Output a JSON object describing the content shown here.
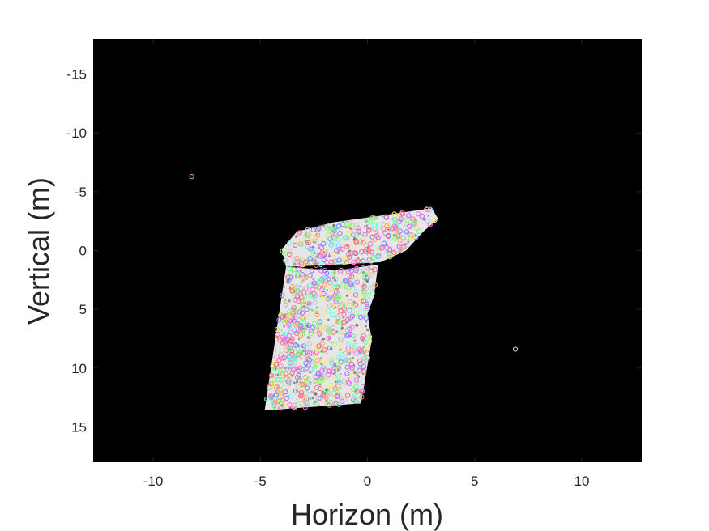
{
  "chart_data": {
    "type": "scatter",
    "title": "",
    "xlabel": "Horizon (m)",
    "ylabel": "Vertical (m)",
    "xlim": [
      -12.8,
      12.8
    ],
    "ylim": [
      -18,
      18
    ],
    "y_reversed": true,
    "background": "#000000",
    "grid": false,
    "legend": "none",
    "xticks": [
      -10,
      -5,
      0,
      5,
      10
    ],
    "yticks": [
      -15,
      -10,
      -5,
      0,
      5,
      10,
      15
    ],
    "xtick_labels": [
      "-10",
      "-5",
      "0",
      "5",
      "10"
    ],
    "ytick_labels": [
      "-15",
      "-10",
      "-5",
      "0",
      "5",
      "10",
      "15"
    ],
    "point_cloud": {
      "color": "#ffffff",
      "regions": [
        {
          "polygon": [
            [
              -4.8,
              13.6
            ],
            [
              -3.8,
              1.4
            ],
            [
              -1.5,
              1.7
            ],
            [
              0.5,
              1.2
            ],
            [
              0.3,
              3.9
            ],
            [
              0.0,
              5.4
            ],
            [
              0.2,
              7.6
            ],
            [
              -0.3,
              13.0
            ],
            [
              -2.6,
              13.3
            ]
          ]
        },
        {
          "polygon": [
            [
              -4.0,
              -0.1
            ],
            [
              -3.3,
              -1.6
            ],
            [
              -1.6,
              -2.4
            ],
            [
              0.0,
              -2.8
            ],
            [
              1.5,
              -3.2
            ],
            [
              3.0,
              -3.6
            ],
            [
              3.3,
              -2.7
            ],
            [
              2.6,
              -1.6
            ],
            [
              1.8,
              0.0
            ],
            [
              0.6,
              1.0
            ],
            [
              -1.5,
              1.2
            ],
            [
              -3.8,
              1.4
            ]
          ]
        }
      ]
    },
    "markers": {
      "shape": "circle",
      "palette": [
        "#ff6f6f",
        "#6fff7a",
        "#6f8cff",
        "#ffe36f",
        "#ff6fe8",
        "#6fffe8",
        "#b66fff",
        "#ffa86f",
        "#9aff6f",
        "#ff6fa8",
        "#6fd4ff",
        "#c8c8c8"
      ],
      "outliers": [
        {
          "x": -8.2,
          "y": -6.3,
          "color": "#ff6fe8"
        },
        {
          "x": 6.9,
          "y": 8.4,
          "color": "#c8c8c8"
        }
      ]
    },
    "series": []
  }
}
